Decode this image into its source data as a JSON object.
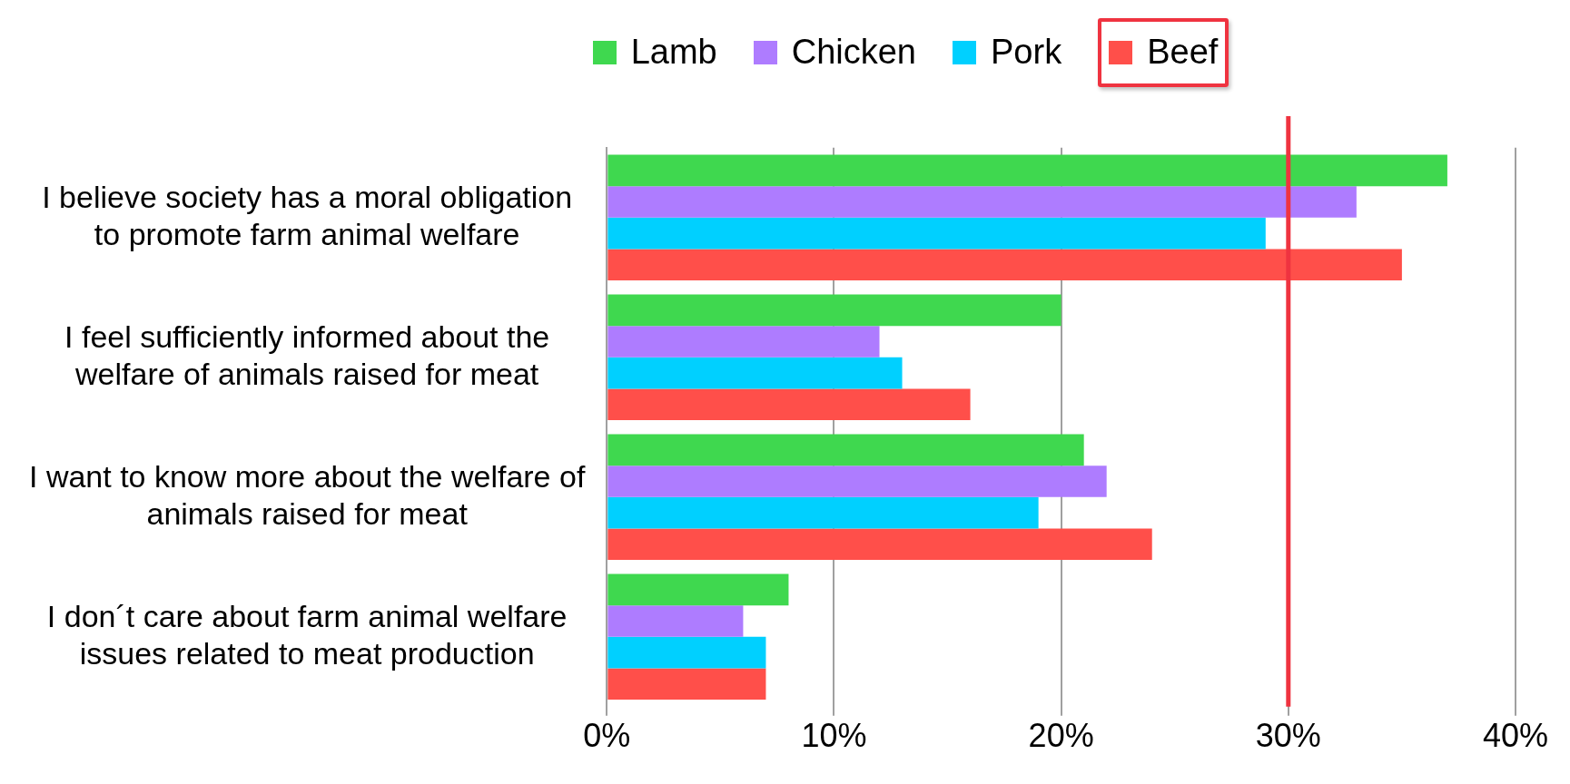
{
  "chart_data": {
    "type": "bar",
    "orientation": "horizontal",
    "categories": [
      "I believe society has a moral obligation to promote farm animal welfare",
      "I feel sufficiently informed about the welfare of animals raised for meat",
      "I want to know more about the welfare of animals raised for meat",
      "I don´t care about farm animal welfare issues related to meat production"
    ],
    "series": [
      {
        "name": "Lamb",
        "color": "#3fd84f",
        "values": [
          37,
          20,
          21,
          8
        ]
      },
      {
        "name": "Chicken",
        "color": "#ae7cff",
        "values": [
          33,
          12,
          22,
          6
        ]
      },
      {
        "name": "Pork",
        "color": "#00d0ff",
        "values": [
          29,
          13,
          19,
          7
        ]
      },
      {
        "name": "Beef",
        "color": "#ff4f4a",
        "values": [
          35,
          16,
          24,
          7
        ]
      }
    ],
    "xlim": [
      0,
      40
    ],
    "xticks": [
      {
        "value": 0,
        "label": "0%"
      },
      {
        "value": 10,
        "label": "10%"
      },
      {
        "value": 20,
        "label": "20%"
      },
      {
        "value": 30,
        "label": "30%"
      },
      {
        "value": 40,
        "label": "40%"
      }
    ],
    "ref_lines": [
      {
        "axis": "x",
        "value": 30,
        "label": null,
        "color": "#ef3340"
      }
    ],
    "grid": "x",
    "legend": "top"
  }
}
